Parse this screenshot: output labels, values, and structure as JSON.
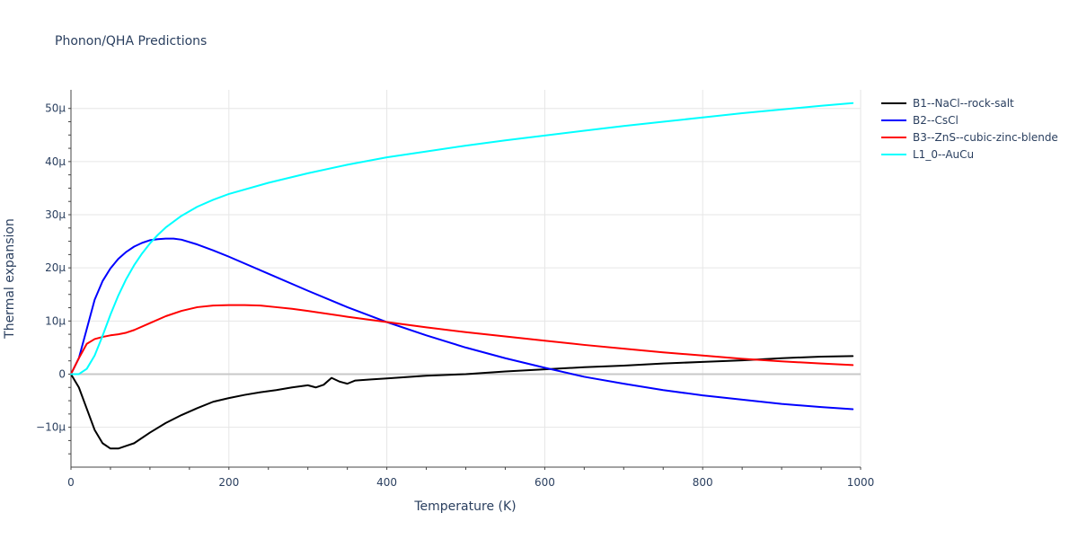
{
  "chart_data": {
    "type": "line",
    "title": "Phonon/QHA Predictions",
    "xlabel": "Temperature (K)",
    "ylabel": "Thermal expansion",
    "xlim": [
      0,
      1000
    ],
    "ylim": [
      -1.75e-05,
      5.35e-05
    ],
    "grid": true,
    "legend_position": "right",
    "x_ticks": [
      0,
      200,
      400,
      600,
      800,
      1000
    ],
    "x_tick_labels": [
      "0",
      "200",
      "400",
      "600",
      "800",
      "1000"
    ],
    "y_ticks": [
      -1e-05,
      0,
      1e-05,
      2e-05,
      3e-05,
      4e-05,
      5e-05
    ],
    "y_tick_labels": [
      "−10μ",
      "0",
      "10μ",
      "20μ",
      "30μ",
      "40μ",
      "50μ"
    ],
    "series": [
      {
        "name": "B1--NaCl--rock-salt",
        "color": "#000000",
        "x": [
          0,
          10,
          20,
          30,
          40,
          50,
          60,
          70,
          80,
          100,
          120,
          140,
          160,
          180,
          200,
          220,
          240,
          260,
          280,
          300,
          310,
          320,
          330,
          340,
          350,
          360,
          380,
          400,
          450,
          500,
          550,
          600,
          650,
          700,
          750,
          800,
          850,
          900,
          950,
          990
        ],
        "y": [
          0,
          -2.5e-06,
          -6.5e-06,
          -1.05e-05,
          -1.3e-05,
          -1.4e-05,
          -1.4e-05,
          -1.35e-05,
          -1.3e-05,
          -1.1e-05,
          -9.2e-06,
          -7.7e-06,
          -6.4e-06,
          -5.2e-06,
          -4.5e-06,
          -3.9e-06,
          -3.4e-06,
          -3e-06,
          -2.5e-06,
          -2.1e-06,
          -2.5e-06,
          -2e-06,
          -7e-07,
          -1.4e-06,
          -1.8e-06,
          -1.2e-06,
          -1e-06,
          -8e-07,
          -3e-07,
          0,
          5e-07,
          9e-07,
          1.3e-06,
          1.6e-06,
          2e-06,
          2.3e-06,
          2.6e-06,
          3e-06,
          3.3e-06,
          3.4e-06
        ]
      },
      {
        "name": "B2--CsCl",
        "color": "#0000ff",
        "x": [
          0,
          10,
          20,
          30,
          40,
          50,
          60,
          70,
          80,
          90,
          100,
          110,
          120,
          130,
          140,
          160,
          180,
          200,
          250,
          300,
          350,
          400,
          450,
          500,
          550,
          600,
          650,
          700,
          750,
          800,
          850,
          900,
          950,
          990
        ],
        "y": [
          0,
          3e-06,
          8.5e-06,
          1.4e-05,
          1.75e-05,
          1.99e-05,
          2.17e-05,
          2.3e-05,
          2.4e-05,
          2.47e-05,
          2.52e-05,
          2.54e-05,
          2.55e-05,
          2.55e-05,
          2.53e-05,
          2.44e-05,
          2.33e-05,
          2.21e-05,
          1.89e-05,
          1.57e-05,
          1.26e-05,
          9.8e-06,
          7.3e-06,
          5e-06,
          3e-06,
          1.2e-06,
          -5e-07,
          -1.8e-06,
          -3e-06,
          -4e-06,
          -4.8e-06,
          -5.6e-06,
          -6.2e-06,
          -6.6e-06
        ]
      },
      {
        "name": "B3--ZnS--cubic-zinc-blende",
        "color": "#ff0000",
        "x": [
          0,
          10,
          20,
          30,
          40,
          50,
          60,
          70,
          80,
          100,
          120,
          140,
          160,
          180,
          200,
          220,
          240,
          260,
          280,
          300,
          350,
          400,
          450,
          500,
          550,
          600,
          650,
          700,
          750,
          800,
          850,
          900,
          950,
          990
        ],
        "y": [
          0,
          3e-06,
          5.7e-06,
          6.6e-06,
          7e-06,
          7.3e-06,
          7.5e-06,
          7.8e-06,
          8.3e-06,
          9.6e-06,
          1.09e-05,
          1.19e-05,
          1.26e-05,
          1.29e-05,
          1.3e-05,
          1.3e-05,
          1.29e-05,
          1.26e-05,
          1.23e-05,
          1.19e-05,
          1.08e-05,
          9.8e-06,
          8.8e-06,
          7.9e-06,
          7.1e-06,
          6.3e-06,
          5.5e-06,
          4.8e-06,
          4.1e-06,
          3.5e-06,
          2.9e-06,
          2.4e-06,
          2e-06,
          1.7e-06
        ]
      },
      {
        "name": "L1_0--AuCu",
        "color": "#00ffff",
        "x": [
          0,
          10,
          20,
          30,
          40,
          50,
          60,
          70,
          80,
          90,
          100,
          110,
          120,
          140,
          160,
          180,
          200,
          250,
          300,
          350,
          400,
          450,
          500,
          550,
          600,
          650,
          700,
          750,
          800,
          850,
          900,
          950,
          990
        ],
        "y": [
          0,
          0,
          1e-06,
          3.5e-06,
          7.2e-06,
          1.12e-05,
          1.48e-05,
          1.79e-05,
          2.05e-05,
          2.27e-05,
          2.46e-05,
          2.62e-05,
          2.76e-05,
          2.98e-05,
          3.15e-05,
          3.28e-05,
          3.39e-05,
          3.6e-05,
          3.78e-05,
          3.94e-05,
          4.08e-05,
          4.19e-05,
          4.3e-05,
          4.4e-05,
          4.49e-05,
          4.58e-05,
          4.67e-05,
          4.75e-05,
          4.83e-05,
          4.91e-05,
          4.98e-05,
          5.05e-05,
          5.1e-05
        ]
      }
    ]
  }
}
